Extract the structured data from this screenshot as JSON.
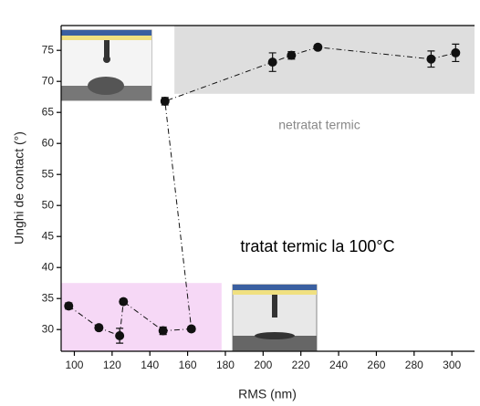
{
  "chart_data": {
    "type": "scatter",
    "x_label": "RMS (nm)",
    "y_label": "Unghi de contact (°)",
    "x": [
      97,
      113,
      124,
      126,
      147,
      162,
      148,
      205,
      215,
      229,
      289,
      302
    ],
    "series": [
      {
        "color": "#111111",
        "values": [
          33.8,
          30.3,
          29,
          34.5,
          29.8,
          30.1,
          66.8,
          73.1,
          74.2,
          75.5,
          73.6,
          74.6
        ],
        "errors": [
          0.5,
          0.4,
          1.2,
          0.4,
          0.6,
          0.4,
          0.6,
          1.5,
          0.6,
          0.4,
          1.3,
          1.4
        ]
      }
    ],
    "xlim": [
      93,
      312
    ],
    "ylim": [
      26.5,
      79
    ],
    "xticks": [
      100,
      120,
      140,
      160,
      180,
      200,
      220,
      240,
      260,
      280,
      300
    ],
    "yticks": [
      30,
      35,
      40,
      45,
      50,
      55,
      60,
      65,
      70,
      75
    ],
    "regions": [
      {
        "xlim": [
          153,
          312
        ],
        "ylim": [
          68,
          79
        ],
        "color": "#dedede"
      },
      {
        "xlim": [
          93,
          178
        ],
        "ylim": [
          26.5,
          37.5
        ],
        "color": "#f6d8f6"
      }
    ],
    "annotations": [
      "netratat termic",
      "tratat termic la 100°C"
    ]
  }
}
